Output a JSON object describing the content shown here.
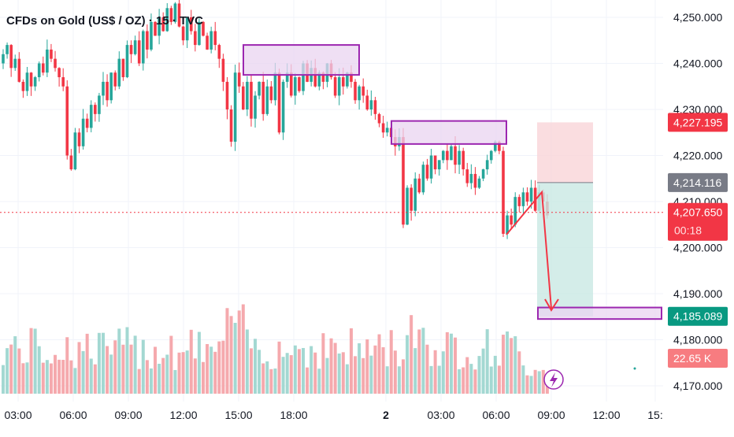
{
  "title": "CFDs on Gold (US$ / OZ) · 15 · TVC",
  "colors": {
    "up": "#26a69a",
    "down": "#f23645",
    "up_volume": "#a3d8d2",
    "down_volume": "#f5a9ad",
    "zone_border": "#9c27b0",
    "zone_fill": "#e9d4f0",
    "stop_zone": "#f9d5d8",
    "target_zone": "#c9e9e3",
    "arrow": "#f23645",
    "current_price_line": "#f23645"
  },
  "y_ticks": [
    "4,250.000",
    "4,240.000",
    "4,230.000",
    "4,220.000",
    "4,210.000",
    "4,200.000",
    "4,190.000",
    "4,180.000",
    "4,170.000"
  ],
  "x_ticks": [
    "03:00",
    "06:00",
    "09:00",
    "12:00",
    "15:00",
    "18:00",
    "2",
    "03:00",
    "06:00",
    "09:00",
    "12:00",
    "15:"
  ],
  "price_tags": {
    "stop": "4,227.195",
    "entry": "4,214.116",
    "current": "4,207.650",
    "countdown": "00:18",
    "target": "4,185.089",
    "volume": "22.65 K"
  },
  "chart_data": {
    "type": "candlestick",
    "title": "CFDs on Gold (US$ / OZ) · 15 · TVC",
    "ylim": [
      4167,
      4254
    ],
    "y_ticks": [
      4250,
      4240,
      4230,
      4220,
      4210,
      4200,
      4190,
      4180,
      4170
    ],
    "x_ticks": [
      "03:00",
      "06:00",
      "09:00",
      "12:00",
      "15:00",
      "18:00",
      "2",
      "03:00",
      "06:00",
      "09:00",
      "12:00",
      "15:"
    ],
    "series_close": [
      4242,
      4244,
      4239,
      4241,
      4236,
      4234,
      4238,
      4235,
      4237,
      4240,
      4238,
      4243,
      4241,
      4239,
      4237,
      4235,
      4220,
      4217,
      4225,
      4222,
      4228,
      4226,
      4231,
      4229,
      4233,
      4236,
      4232,
      4238,
      4235,
      4241,
      4237,
      4244,
      4242,
      4245,
      4240,
      4247,
      4243,
      4249,
      4246,
      4250,
      4247,
      4252,
      4249,
      4253,
      4248,
      4245,
      4250,
      4247,
      4244,
      4249,
      4246,
      4243,
      4247,
      4244,
      4241,
      4236,
      4230,
      4223,
      4238,
      4235,
      4230,
      4236,
      4228,
      4233,
      4236,
      4229,
      4235,
      4232,
      4238,
      4225,
      4236,
      4238,
      4233,
      4237,
      4234,
      4240,
      4236,
      4239,
      4235,
      4238,
      4236,
      4240,
      4237,
      4233,
      4237,
      4235,
      4238,
      4236,
      4232,
      4235,
      4233,
      4230,
      4232,
      4229,
      4227,
      4225,
      4226,
      4224,
      4222,
      4224,
      4205,
      4213,
      4208,
      4215,
      4212,
      4218,
      4215,
      4220,
      4217,
      4219,
      4221,
      4219,
      4222,
      4218,
      4221,
      4217,
      4214,
      4216,
      4213,
      4215,
      4217,
      4219,
      4221,
      4223,
      4221,
      4203,
      4207,
      4205,
      4211,
      4209,
      4212,
      4210,
      4213,
      4208,
      4212,
      4210,
      4207
    ],
    "volume_levels": "high-medium, peaks around 15:00 and 02:00, low after 09:00",
    "annotations": {
      "supply_zones": [
        [
          4237.5,
          4244
        ],
        [
          4222.5,
          4227.5
        ]
      ],
      "target_zone": [
        4184.5,
        4187
      ],
      "stop_level": 4227.195,
      "entry_level": 4214.116,
      "target_level": 4185.089,
      "current_price": 4207.65,
      "current_volume": "22.65 K"
    }
  }
}
